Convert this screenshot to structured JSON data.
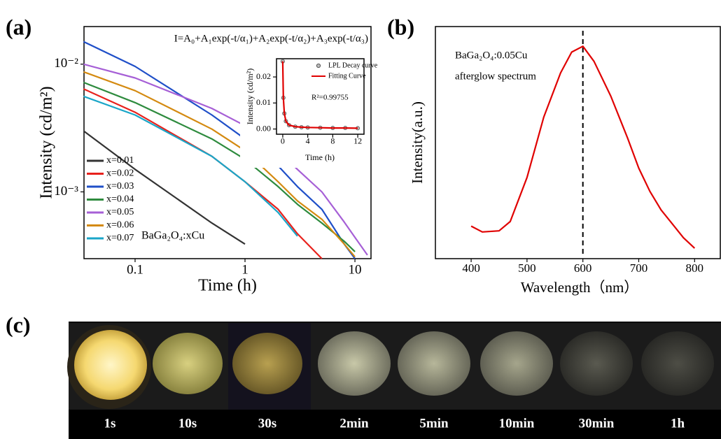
{
  "panel_labels": [
    "(a)",
    "(b)",
    "(c)"
  ],
  "chart_data": [
    {
      "type": "line",
      "xscale": "log",
      "yscale": "log",
      "xlabel": "Time (h)",
      "ylabel": "Intensity (cd/m²)",
      "annotations": [
        "I=A₀+A₁exp(-t/α₁)+A₂exp(-t/α₂)+A₃exp(-t/α₃)",
        "BaGa₂O₄:xCu"
      ],
      "legend": "lower left",
      "x": [
        0.034,
        0.1,
        0.5,
        1,
        2,
        3,
        5,
        8,
        10,
        13
      ],
      "xlim": [
        0.0343,
        14
      ],
      "ylim": [
        0.0003,
        0.0197
      ],
      "xticks": [
        0.1,
        1,
        10
      ],
      "yticks": [
        {
          "value": 0.001,
          "label": "10⁻³"
        },
        {
          "value": 0.01,
          "label": "10⁻²"
        }
      ],
      "series": [
        {
          "name": "x=0.01",
          "color": "#333333",
          "values": [
            0.003,
            0.0015,
            0.00057,
            0.00039,
            null,
            null,
            null,
            null,
            null,
            null
          ]
        },
        {
          "name": "x=0.02",
          "color": "#e8211c",
          "values": [
            0.0064,
            0.0042,
            0.0019,
            0.0012,
            0.00073,
            0.00047,
            0.0003,
            null,
            null,
            null
          ]
        },
        {
          "name": "x=0.03",
          "color": "#1f4fc8",
          "values": [
            0.015,
            0.0096,
            0.004,
            0.0026,
            0.0016,
            0.0011,
            0.00073,
            0.00039,
            0.0003,
            null
          ]
        },
        {
          "name": "x=0.04",
          "color": "#2e8b3e",
          "values": [
            0.0072,
            0.005,
            0.0026,
            0.0018,
            0.0011,
            0.0008,
            0.00057,
            0.00041,
            0.00034,
            null
          ]
        },
        {
          "name": "x=0.05",
          "color": "#a65fd6",
          "values": [
            0.01,
            0.0078,
            0.0045,
            0.0033,
            0.0021,
            0.0015,
            0.001,
            0.00058,
            0.00044,
            0.00032
          ]
        },
        {
          "name": "x=0.06",
          "color": "#d48a10",
          "values": [
            0.0087,
            0.0062,
            0.0031,
            0.0021,
            0.0012,
            0.00085,
            0.00061,
            0.00039,
            0.00031,
            null
          ]
        },
        {
          "name": "x=0.07",
          "color": "#1aa6c8",
          "values": [
            0.0056,
            0.004,
            0.0019,
            0.0012,
            0.00069,
            0.00045,
            null,
            null,
            null,
            null
          ]
        }
      ]
    },
    {
      "type": "line",
      "xlabel": "Time (h)",
      "ylabel": "Intensity (cd/m²)",
      "annotations": [
        "R²=0.99755"
      ],
      "legend": "upper right",
      "x": [
        0,
        0.1,
        0.25,
        0.5,
        1,
        2,
        3,
        4,
        6,
        8,
        10,
        12
      ],
      "xlim": [
        -1,
        13
      ],
      "ylim": [
        -0.002,
        0.027
      ],
      "xticks": [
        0,
        4,
        8,
        12
      ],
      "yticks": [
        {
          "value": 0,
          "label": "0.00"
        },
        {
          "value": 0.01,
          "label": "0.01"
        },
        {
          "value": 0.02,
          "label": "0.02"
        }
      ],
      "series": [
        {
          "name": "LPL Decay curve",
          "color": "#555555",
          "style": "markers",
          "values": [
            0.026,
            0.012,
            0.006,
            0.003,
            0.0015,
            0.0009,
            0.0007,
            0.0006,
            0.0005,
            0.0004,
            0.0004,
            0.0003
          ]
        },
        {
          "name": "Fitting Curve",
          "color": "#e00000",
          "style": "line",
          "values": [
            0.026,
            0.012,
            0.006,
            0.003,
            0.0015,
            0.0009,
            0.0007,
            0.0006,
            0.0005,
            0.0004,
            0.0004,
            0.0003
          ]
        }
      ]
    },
    {
      "type": "line",
      "xlabel": "Wavelength（nm）",
      "ylabel": "Intensity(a.u.)",
      "annotations": [
        "BaGa₂O₄:0.05Cu",
        "afterglow spectrum"
      ],
      "vline": 600,
      "x": [
        400,
        420,
        450,
        470,
        500,
        530,
        560,
        580,
        600,
        620,
        650,
        680,
        700,
        720,
        740,
        760,
        780,
        800
      ],
      "xlim": [
        336,
        846
      ],
      "ylim": [
        0,
        1
      ],
      "xticks": [
        400,
        500,
        600,
        700,
        800
      ],
      "series": [
        {
          "color": "#e00000",
          "values": [
            0.14,
            0.115,
            0.12,
            0.16,
            0.35,
            0.61,
            0.8,
            0.89,
            0.915,
            0.85,
            0.7,
            0.52,
            0.39,
            0.29,
            0.21,
            0.15,
            0.09,
            0.045
          ]
        }
      ]
    }
  ],
  "photo_captions": [
    "1s",
    "10s",
    "30s",
    "2min",
    "5min",
    "10min",
    "30min",
    "1h"
  ]
}
